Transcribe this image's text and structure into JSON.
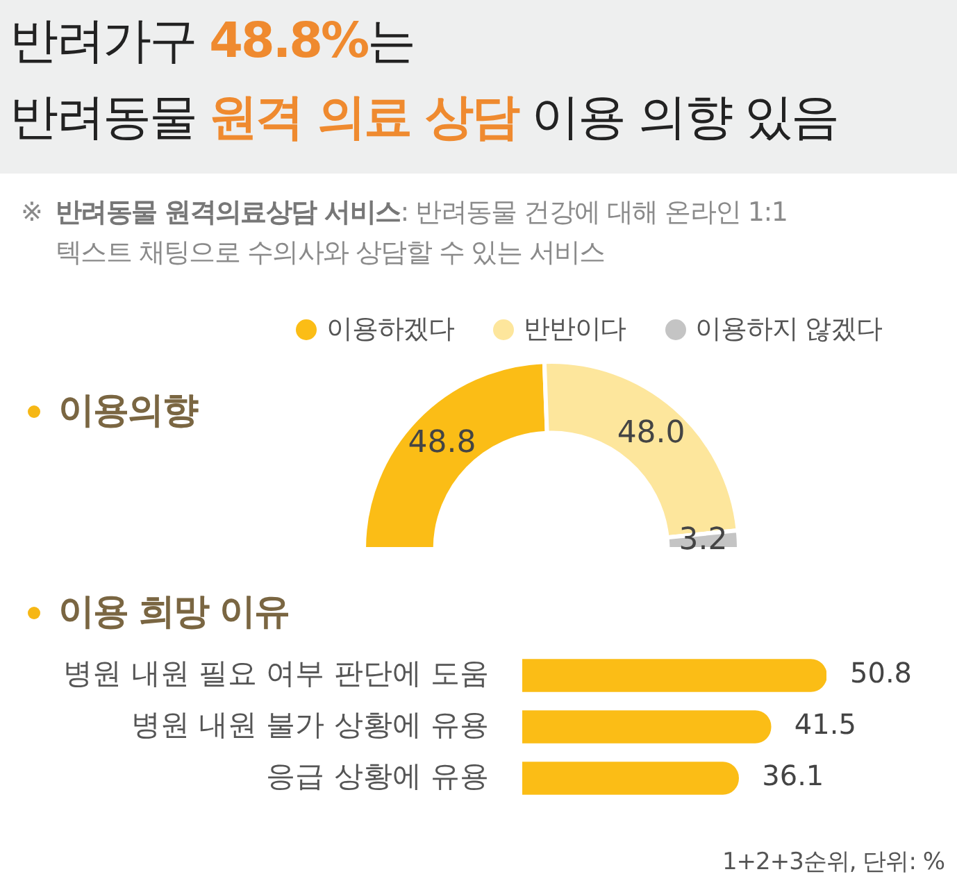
{
  "chart_data": [
    {
      "type": "donut",
      "title": "이용의향",
      "annotations": [
        "반려가구 ",
        "48.8%",
        "는",
        "반려동물 ",
        "원격 의료 상담",
        " 이용 의향 있음",
        "※",
        "반려동물 원격의료상담 서비스",
        ": 반려동물 건강에 대해 온라인 1:1 텍스트 채팅으로 수의사와 상담할 수 있는 서비스"
      ],
      "categories": [
        "이용하겠다",
        "반반이다",
        "이용하지 않겠다"
      ],
      "values": [
        48.8,
        48.0,
        3.2
      ],
      "colors": [
        "#fbbd16",
        "#fde69c",
        "#c4c4c4"
      ],
      "value_labels": [
        "48.8",
        "48.0",
        "3.2"
      ],
      "legend": "top"
    },
    {
      "type": "bar",
      "orientation": "horizontal",
      "title": "이용 희망 이유",
      "categories": [
        "병원 내원 필요 여부 판단에 도움",
        "병원 내원 불가 상황에 유용",
        "응급 상황에 유용"
      ],
      "values": [
        50.8,
        41.5,
        36.1
      ],
      "color": "#fbbd16",
      "data_labels": true,
      "tick_labels": "y",
      "annotations": [
        "1+2+3순위, 단위: %"
      ]
    }
  ]
}
